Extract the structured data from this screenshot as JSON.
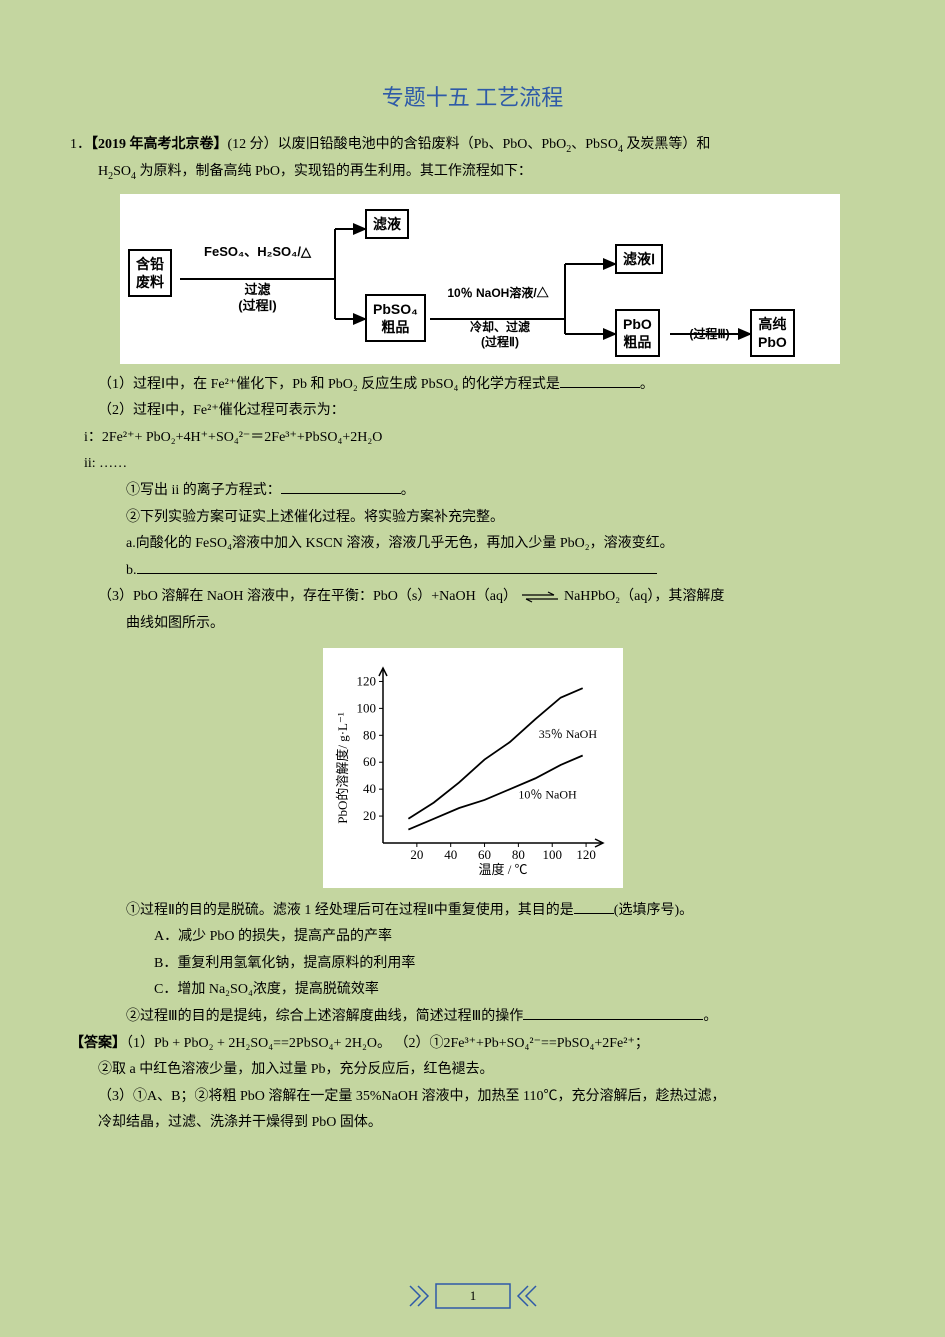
{
  "title": "专题十五 工艺流程",
  "question": {
    "num": "1．",
    "source": "【2019 年高考北京卷】",
    "points": "(12 分）",
    "stem1": "以废旧铅酸电池中的含铅废料（Pb、PbO、PbO",
    "stem1b": "、PbSO",
    "stem1c": " 及炭黑等）和",
    "stem2_pre": "H",
    "stem2_mid": "SO",
    "stem2_post": " 为原料，制备高纯 PbO，实现铅的再生利用。其工作流程如下："
  },
  "flow": {
    "box_feed": "含铅\n废料",
    "reagent1a": "FeSO₄、H₂SO₄/△",
    "reagent1b": "过滤",
    "reagent1c": "(过程Ⅰ)",
    "box_filtrate": "滤液",
    "box_pbso4": "PbSO₄\n粗品",
    "reagent2a": "10％ NaOH溶液/△",
    "reagent2b": "冷却、过滤",
    "reagent2c": "(过程Ⅱ)",
    "box_filtrate1": "滤液Ⅰ",
    "box_pbo_crude": "PbO\n粗品",
    "step3": "(过程Ⅲ)",
    "box_pbo_pure": "高纯\nPbO"
  },
  "parts": {
    "p1": "（1）过程Ⅰ中，在 Fe²⁺催化下，Pb 和 PbO₂ 反应生成 PbSO₄ 的化学方程式是",
    "p1end": "。",
    "p2": "（2）过程Ⅰ中，Fe²⁺催化过程可表示为：",
    "p2i": "i：2Fe²⁺+ PbO₂+4H⁺+SO₄²⁻＝2Fe³⁺+PbSO₄+2H₂O",
    "p2ii": "ii: ……",
    "p2_1": "①写出 ii 的离子方程式：",
    "p2_1end": "。",
    "p2_2": "②下列实验方案可证实上述催化过程。将实验方案补充完整。",
    "p2_2a": "a.向酸化的 FeSO₄溶液中加入 KSCN 溶液，溶液几乎无色，再加入少量 PbO₂，溶液变红。",
    "p2_2b": "b.",
    "p3": "（3）PbO 溶解在 NaOH 溶液中，存在平衡：PbO（s）+NaOH（aq）",
    "p3eq": "NaHPbO₂（aq），其溶解度",
    "p3b": "曲线如图所示。"
  },
  "chart": {
    "ylabel": "PbO的溶解度/ g·L⁻¹",
    "xlabel": "温度 / ℃",
    "yticks": [
      20,
      40,
      60,
      80,
      100,
      120
    ],
    "xticks": [
      20,
      40,
      60,
      80,
      100,
      120
    ],
    "series1_label": "35％ NaOH",
    "series2_label": "10％ NaOH",
    "series1": [
      [
        15,
        18
      ],
      [
        30,
        30
      ],
      [
        45,
        45
      ],
      [
        60,
        62
      ],
      [
        75,
        75
      ],
      [
        90,
        92
      ],
      [
        105,
        108
      ],
      [
        118,
        115
      ]
    ],
    "series2": [
      [
        15,
        10
      ],
      [
        30,
        18
      ],
      [
        45,
        26
      ],
      [
        60,
        32
      ],
      [
        75,
        40
      ],
      [
        90,
        48
      ],
      [
        105,
        58
      ],
      [
        118,
        65
      ]
    ],
    "colors": {
      "bg": "#ffffff",
      "axis": "#000000",
      "line": "#000000"
    },
    "font_size_axis": 13,
    "font_size_label": 13,
    "xlim": [
      0,
      130
    ],
    "ylim": [
      0,
      130
    ]
  },
  "parts2": {
    "p3_1": "①过程Ⅱ的目的是脱硫。滤液 1 经处理后可在过程Ⅱ中重复使用，其目的是",
    "p3_1end": "(选填序号)。",
    "optA": "A．减少 PbO 的损失，提高产品的产率",
    "optB": "B．重复利用氢氧化钠，提高原料的利用率",
    "optC": "C．增加 Na₂SO₄浓度，提高脱硫效率",
    "p3_2": "②过程Ⅲ的目的是提纯，综合上述溶解度曲线，简述过程Ⅲ的操作",
    "p3_2end": "。"
  },
  "answer": {
    "label": "【答案】",
    "a1": "（1）Pb + PbO₂ + 2H₂SO₄==2PbSO₄+ 2H₂O。  （2）①2Fe³⁺+Pb+SO₄²⁻==PbSO₄+2Fe²⁺；",
    "a2": "②取 a 中红色溶液少量，加入过量 Pb，充分反应后，红色褪去。",
    "a3": "（3）①A、B；②将粗 PbO 溶解在一定量 35%NaOH 溶液中，加热至 110℃，充分溶解后，趁热过滤，",
    "a4": "冷却结晶，过滤、洗涤并干燥得到 PbO 固体。"
  },
  "page_number": "1"
}
